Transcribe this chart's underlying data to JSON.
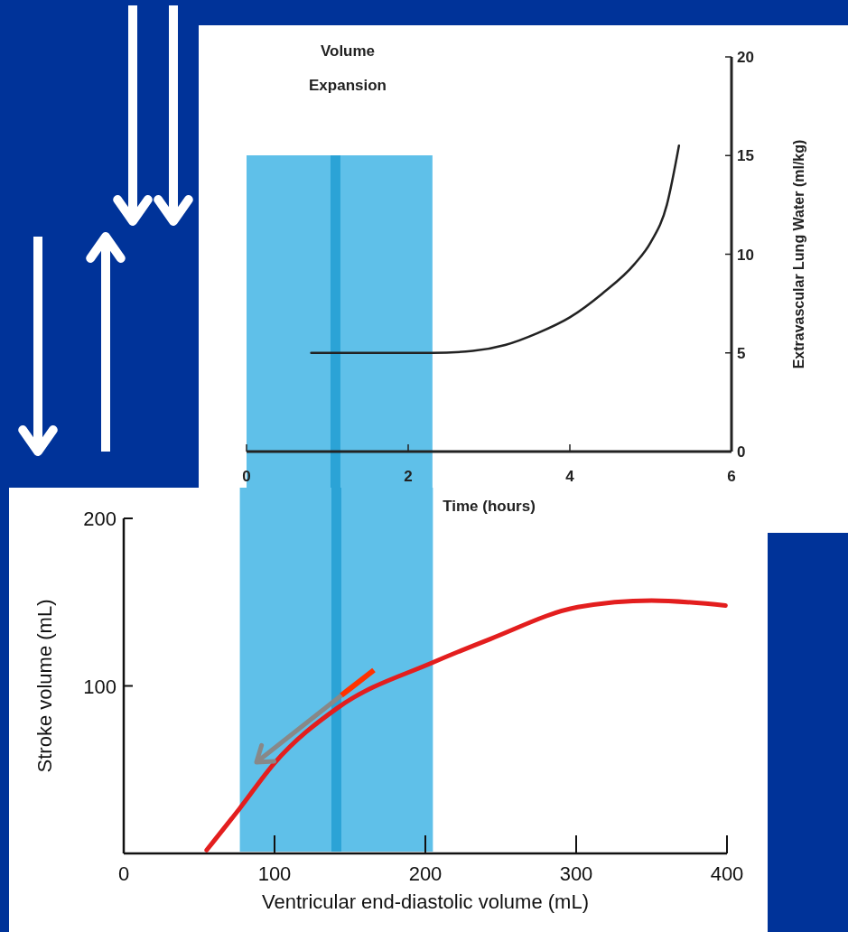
{
  "chart_data": [
    {
      "type": "line",
      "x": [
        0.8,
        2.3,
        2.8,
        3.2,
        3.6,
        4.0,
        4.4,
        4.8,
        5.0,
        5.2,
        5.35
      ],
      "values": [
        5,
        5,
        5.1,
        5.4,
        6,
        6.8,
        8,
        9.5,
        10.6,
        12.5,
        15.5
      ],
      "color": "#222222",
      "xlabel": "Time (hours)",
      "ylabel": "Extravascular Lung Water (ml/kg)",
      "xlim": [
        0,
        6
      ],
      "xticks": [
        0,
        2,
        4,
        6
      ],
      "ylim": [
        0,
        20
      ],
      "yticks": [
        0,
        5,
        10,
        15,
        20
      ],
      "annotations": [
        "Volume Expansion"
      ],
      "bands": [
        {
          "axis": "x",
          "from": 0,
          "to": 2.3,
          "color": "#29abe2"
        }
      ],
      "ref_lines": [
        {
          "axis": "x",
          "value": 1.1,
          "color": "#1a9ad0"
        }
      ],
      "grid": false,
      "legend": false,
      "marker": "none",
      "line_style": "solid"
    },
    {
      "type": "line",
      "x": [
        55,
        77,
        100,
        142,
        205,
        243,
        301,
        350,
        399
      ],
      "values": [
        2,
        27,
        54,
        87,
        114,
        128,
        147,
        151,
        148
      ],
      "color": "#e31e1e",
      "xlabel": "Ventricular end-diastolic volume (mL)",
      "ylabel": "Stroke volume (mL)",
      "xlim": [
        0,
        400
      ],
      "xticks": [
        0,
        100,
        200,
        300,
        400
      ],
      "ylim": [
        0,
        200
      ],
      "yticks": [
        100,
        200
      ],
      "bands": [
        {
          "axis": "x",
          "from": 77,
          "to": 205,
          "color": "#29abe2"
        }
      ],
      "ref_lines": [
        {
          "axis": "x",
          "value": 141,
          "color": "#1a9ad0"
        }
      ],
      "grid": false,
      "legend": false,
      "marker": "none",
      "line_style": "solid"
    }
  ]
}
